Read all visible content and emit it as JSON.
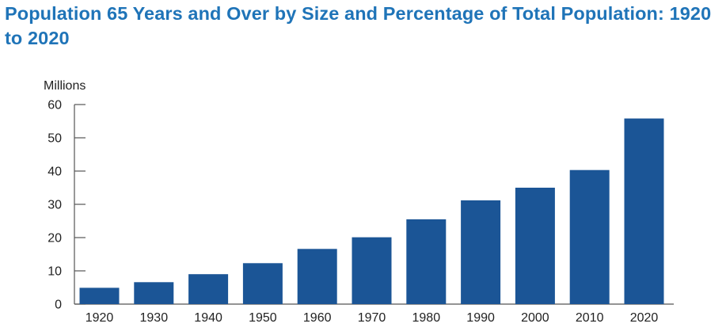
{
  "chart_data": {
    "type": "bar",
    "title": "Population 65 Years and Over by Size and Percentage of Total Population: 1920 to 2020",
    "ylabel": "Millions",
    "xlabel": "",
    "categories": [
      "1920",
      "1930",
      "1940",
      "1950",
      "1960",
      "1970",
      "1980",
      "1990",
      "2000",
      "2010",
      "2020"
    ],
    "values": [
      4.9,
      6.6,
      9.0,
      12.3,
      16.6,
      20.1,
      25.5,
      31.2,
      35.0,
      40.3,
      55.8
    ],
    "ylim": [
      0,
      60
    ],
    "yticks": [
      "0",
      "10",
      "20",
      "30",
      "40",
      "50",
      "60"
    ],
    "grid": false,
    "colors": {
      "bar": "#1b5596",
      "title": "#1f74b8",
      "axis": "#555555",
      "text": "#222222"
    }
  }
}
